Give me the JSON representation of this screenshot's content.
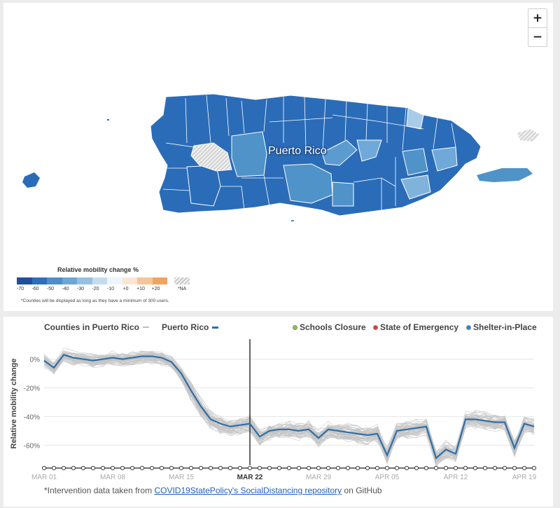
{
  "map": {
    "zoom_in_label": "+",
    "zoom_out_label": "−",
    "region_label": "Puerto Rico",
    "colors": {
      "dark": "#2b6cb8",
      "mid": "#4f93c9",
      "light": "#7fb3db",
      "lighter": "#a9cbea",
      "na": "#cccccc"
    },
    "legend": {
      "title": "Relative mobility change %",
      "swatches": [
        "#1f4e9c",
        "#2e6fbd",
        "#4b8fcb",
        "#6aa7d7",
        "#94c1e3",
        "#c5dcf0",
        "#eef5fc",
        "#fbe6d2",
        "#f6c597",
        "#f1a45f"
      ],
      "ticks": [
        "-70",
        "-60",
        "-50",
        "-40",
        "-30",
        "-20",
        "-10",
        "+0",
        "+10",
        "+20"
      ],
      "na_label": "*NA",
      "note": "*Counties will be displayed as long as they have a minimum of 300 users."
    }
  },
  "chart_header": {
    "counties_label": "Counties in Puerto Rico",
    "region_label": "Puerto Rico",
    "schools_label": "Schools Closure",
    "emergency_label": "State of Emergency",
    "shelter_label": "Shelter-in-Place",
    "colors": {
      "counties": "#bdbdbd",
      "region": "#2f6fa8",
      "schools": "#8bc34a",
      "emergency": "#e53935",
      "shelter": "#1e88e5"
    }
  },
  "chart_data": {
    "type": "line",
    "ylabel": "Relative mobility change",
    "y_ticks": [
      0,
      -20,
      -40,
      -60
    ],
    "y_tick_labels": [
      "0%",
      "-20%",
      "-40%",
      "-60%"
    ],
    "ylim": [
      -74,
      12
    ],
    "x_tick_labels": [
      "MAR 01",
      "MAR 08",
      "MAR 15",
      "MAR 22",
      "MAR 29",
      "APR 05",
      "APR 12",
      "APR 19"
    ],
    "x_tick_days": [
      0,
      7,
      14,
      21,
      28,
      35,
      42,
      49
    ],
    "x_days_total": 50,
    "highlight_day": 21,
    "highlight_label": "MAR 22",
    "series": [
      {
        "name": "Puerto Rico",
        "values": [
          -1,
          -6,
          3,
          1,
          0,
          -1,
          0,
          1,
          0,
          1,
          2,
          2,
          1,
          -2,
          -10,
          -22,
          -33,
          -42,
          -45,
          -47,
          -46,
          -45,
          -54,
          -50,
          -49,
          -49,
          -50,
          -49,
          -55,
          -49,
          -50,
          -51,
          -52,
          -53,
          -52,
          -67,
          -50,
          -49,
          -48,
          -47,
          -69,
          -63,
          -66,
          -42,
          -42,
          -43,
          -44,
          -44,
          -62,
          -45,
          -47
        ]
      }
    ],
    "county_series_note": "gray lines"
  },
  "footnote": {
    "prefix": "*Intervention data taken from ",
    "link_text": "COVID19StatePolicy's SocialDistancing repository",
    "suffix": " on GitHub"
  }
}
